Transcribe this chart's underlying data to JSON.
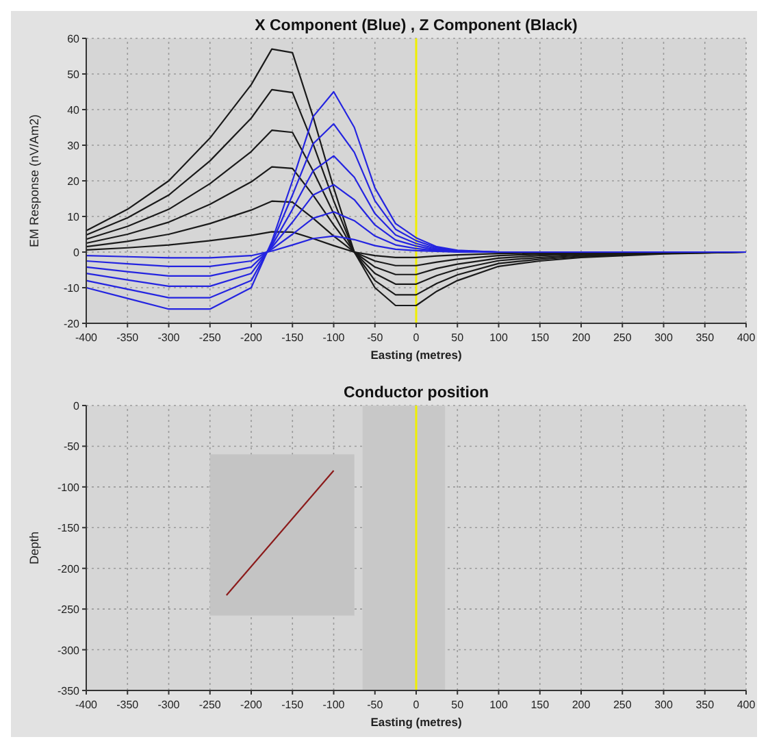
{
  "chart_data": [
    {
      "type": "line",
      "title": "X Component (Blue) , Z Component (Black)",
      "xlabel": "Easting (metres)",
      "ylabel": "EM Response (nV/Am2)",
      "grid": true,
      "line_style": "solid",
      "xlim": [
        -400,
        400
      ],
      "xticks": [
        -400,
        -350,
        -300,
        -250,
        -200,
        -150,
        -100,
        -50,
        0,
        50,
        100,
        150,
        200,
        250,
        300,
        350,
        400
      ],
      "ylim": [
        -20,
        60
      ],
      "yticks": [
        -20,
        -10,
        0,
        10,
        20,
        30,
        40,
        50,
        60
      ],
      "x": [
        -400,
        -350,
        -300,
        -250,
        -200,
        -175,
        -150,
        -125,
        -100,
        -75,
        -50,
        -25,
        0,
        25,
        50,
        100,
        150,
        200,
        300,
        400
      ],
      "series": [
        {
          "color": "#1a1a1a",
          "values": [
            6,
            12,
            20,
            32,
            47,
            57,
            56,
            38,
            18,
            0,
            -10,
            -15,
            -15,
            -11,
            -8,
            -4,
            -2.5,
            -1.5,
            -0.5,
            0
          ]
        },
        {
          "color": "#1a1a1a",
          "values": [
            4.8,
            9.6,
            16,
            25.6,
            37.6,
            45.6,
            44.8,
            30.4,
            14.4,
            0,
            -8,
            -12,
            -12,
            -8.8,
            -6.4,
            -3.2,
            -2,
            -1.2,
            -0.4,
            0
          ]
        },
        {
          "color": "#1a1a1a",
          "values": [
            3.6,
            7.2,
            12,
            19.2,
            28.2,
            34.2,
            33.6,
            22.8,
            10.8,
            0,
            -6,
            -9,
            -9,
            -6.6,
            -4.8,
            -2.4,
            -1.5,
            -0.9,
            -0.3,
            0
          ]
        },
        {
          "color": "#1a1a1a",
          "values": [
            2.5,
            5,
            8.4,
            13.4,
            19.7,
            23.9,
            23.5,
            16,
            7.6,
            0,
            -4.2,
            -6.3,
            -6.3,
            -4.6,
            -3.4,
            -1.7,
            -1,
            -0.6,
            -0.2,
            0
          ]
        },
        {
          "color": "#1a1a1a",
          "values": [
            1.5,
            3,
            5,
            8,
            11.8,
            14.3,
            14,
            9.5,
            4.5,
            0,
            -2.5,
            -3.8,
            -3.8,
            -2.8,
            -2,
            -1,
            -0.6,
            -0.4,
            -0.1,
            0
          ]
        },
        {
          "color": "#1a1a1a",
          "values": [
            0.6,
            1.2,
            2,
            3.2,
            4.7,
            5.7,
            5.6,
            3.8,
            1.8,
            0,
            -1,
            -1.5,
            -1.5,
            -1.1,
            -0.8,
            -0.4,
            -0.3,
            -0.2,
            0,
            0
          ]
        },
        {
          "color": "#2424e0",
          "values": [
            -10,
            -13,
            -16,
            -16,
            -10,
            3,
            20,
            38,
            45,
            35,
            18,
            8,
            4,
            1.5,
            0.5,
            0,
            0,
            0,
            0,
            0
          ]
        },
        {
          "color": "#2424e0",
          "values": [
            -8,
            -10.4,
            -12.8,
            -12.8,
            -8,
            2.4,
            16,
            30.4,
            36,
            28,
            14.4,
            6.4,
            3.2,
            1.2,
            0.4,
            0,
            0,
            0,
            0,
            0
          ]
        },
        {
          "color": "#2424e0",
          "values": [
            -6,
            -7.8,
            -9.6,
            -9.6,
            -6,
            1.8,
            12,
            22.8,
            27,
            21,
            10.8,
            4.8,
            2.4,
            0.9,
            0.3,
            0,
            0,
            0,
            0,
            0
          ]
        },
        {
          "color": "#2424e0",
          "values": [
            -4.2,
            -5.5,
            -6.7,
            -6.7,
            -4.2,
            1.3,
            8.4,
            16,
            18.9,
            14.7,
            7.6,
            3.4,
            1.7,
            0.6,
            0.2,
            0,
            0,
            0,
            0,
            0
          ]
        },
        {
          "color": "#2424e0",
          "values": [
            -2.5,
            -3.3,
            -4,
            -4,
            -2.5,
            0.8,
            5,
            9.5,
            11.3,
            8.8,
            4.5,
            2,
            1,
            0.4,
            0.1,
            0,
            0,
            0,
            0,
            0
          ]
        },
        {
          "color": "#2424e0",
          "values": [
            -1,
            -1.3,
            -1.6,
            -1.6,
            -1,
            0.3,
            2,
            3.8,
            4.5,
            3.5,
            1.8,
            0.8,
            0.4,
            0.2,
            0,
            0,
            0,
            0,
            0,
            0
          ]
        }
      ],
      "ref_lines": [
        {
          "axis": "x",
          "value": 0,
          "color": "#f0f000"
        }
      ]
    },
    {
      "type": "line",
      "title": "Conductor position",
      "xlabel": "Easting (metres)",
      "ylabel": "Depth",
      "grid": true,
      "xlim": [
        -400,
        400
      ],
      "xticks": [
        -400,
        -350,
        -300,
        -250,
        -200,
        -150,
        -100,
        -50,
        0,
        50,
        100,
        150,
        200,
        250,
        300,
        350,
        400
      ],
      "ylim": [
        -350,
        0
      ],
      "yticks": [
        -350,
        -300,
        -250,
        -200,
        -150,
        -100,
        -50,
        0
      ],
      "series": [
        {
          "type": "bar",
          "color": "#c4c4c4",
          "x": [
            -162.5
          ],
          "base": [
            -258
          ],
          "values": [
            198
          ]
        },
        {
          "type": "bar",
          "color": "#c8c8c8",
          "x": [
            -15
          ],
          "base": [
            -350
          ],
          "values": [
            350
          ]
        },
        {
          "color": "#8b1a1a",
          "x": [
            -230,
            -100
          ],
          "values": [
            -233,
            -80
          ]
        }
      ],
      "ref_lines": [
        {
          "axis": "x",
          "value": 0,
          "color": "#f0f000"
        }
      ]
    }
  ]
}
